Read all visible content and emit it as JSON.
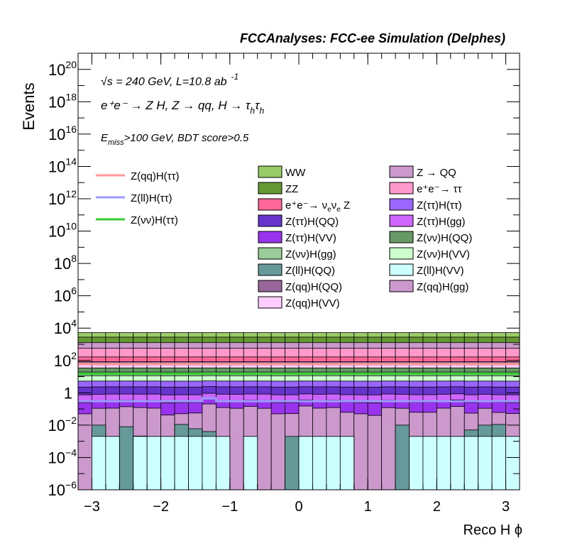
{
  "header": {
    "title": "FCCAnalyses: FCC-ee Simulation (Delphes)"
  },
  "annotations": {
    "energy": "√s = 240 GeV, L=10.8 ab",
    "lumi_exp": "-1",
    "process": "e⁺e⁻ → Z H, Z → qq, H → τ",
    "process_sub": "h",
    "cut_pre": "E",
    "cut_sub": "miss",
    "cut_post": ">100 GeV, BDT score>0.5"
  },
  "chart_data": {
    "type": "histogram-stack",
    "xlabel": "Reco H ϕ",
    "ylabel": "Events",
    "xlim": [
      -3.2,
      3.2
    ],
    "ylim": [
      1e-06,
      1e+21
    ],
    "yscale": "log",
    "x_ticks": [
      -3,
      -2,
      -1,
      0,
      1,
      2,
      3
    ],
    "x_tick_labels": [
      "−3",
      "−2",
      "−1",
      "0",
      "1",
      "2",
      "3"
    ],
    "y_ticks": [
      {
        "base": "10",
        "exp": "−6",
        "value": 1e-06
      },
      {
        "base": "10",
        "exp": "−4",
        "value": 0.0001
      },
      {
        "base": "10",
        "exp": "−2",
        "value": 0.01
      },
      {
        "base": "1",
        "exp": "",
        "value": 1
      },
      {
        "base": "10",
        "exp": "2",
        "value": 100.0
      },
      {
        "base": "10",
        "exp": "4",
        "value": 10000.0
      },
      {
        "base": "10",
        "exp": "6",
        "value": 1000000.0
      },
      {
        "base": "10",
        "exp": "8",
        "value": 100000000.0
      },
      {
        "base": "10",
        "exp": "10",
        "value": 10000000000.0
      },
      {
        "base": "10",
        "exp": "12",
        "value": 1000000000000.0
      },
      {
        "base": "10",
        "exp": "14",
        "value": 100000000000000.0
      },
      {
        "base": "10",
        "exp": "16",
        "value": 1e+16
      },
      {
        "base": "10",
        "exp": "18",
        "value": 1e+18
      },
      {
        "base": "10",
        "exp": "20",
        "value": 1e+20
      }
    ],
    "bins": 32,
    "stack_bottom_to_top": [
      {
        "name": "Z(ll)H(VV)",
        "color": "#ccffff",
        "values": [
          1e-06,
          0.002,
          0.002,
          1e-06,
          0.002,
          0.002,
          0.002,
          0.002,
          0.002,
          0.002,
          0.002,
          1e-06,
          0.002,
          1e-06,
          1e-06,
          1e-06,
          0.002,
          0.002,
          0.002,
          0.002,
          1e-06,
          1e-06,
          1e-06,
          1e-06,
          0.002,
          0.002,
          0.002,
          0.002,
          0.002,
          0.002,
          0.002,
          0.002
        ]
      },
      {
        "name": "Z(ll)H(QQ)",
        "color": "#669999",
        "values": [
          0,
          0.008,
          0,
          0.008,
          0.0001,
          0,
          0,
          0.009,
          0.004,
          0.002,
          0,
          0,
          0,
          0,
          0,
          0.002,
          0,
          0,
          0,
          0,
          0,
          0,
          0,
          0.01,
          0,
          0,
          0,
          0,
          0.003,
          0.008,
          0.009,
          0
        ]
      },
      {
        "name": "Z(qq)H(gg)",
        "color": "#cc99cc",
        "values": [
          0.05,
          0.1,
          0.11,
          0.13,
          0.12,
          0.11,
          0.04,
          0.04,
          0.05,
          0.2,
          0.12,
          0.11,
          0.14,
          0.11,
          0.05,
          0.05,
          0.15,
          0.11,
          0.12,
          0.06,
          0.05,
          0.04,
          0.12,
          0.1,
          0.06,
          0.06,
          0.11,
          0.14,
          0.05,
          0.1,
          0.05,
          0.05
        ]
      },
      {
        "name": "Z(ττ)H(VV)",
        "color": "#9933ee",
        "values": [
          0.2,
          0.2,
          0.22,
          0.2,
          0.2,
          0.22,
          0.2,
          0.2,
          0.2,
          0.22,
          0.2,
          0.2,
          0.2,
          0.22,
          0.2,
          0.2,
          0.2,
          0.2,
          0.22,
          0.2,
          0.2,
          0.2,
          0.22,
          0.2,
          0.2,
          0.2,
          0.2,
          0.22,
          0.2,
          0.2,
          0.2,
          0.2
        ]
      },
      {
        "name": "Z(ττ)H(gg)",
        "color": "#cc66ff",
        "values": [
          0.5,
          0.5,
          0.5,
          0.5,
          0.5,
          0.5,
          0.5,
          0.5,
          0.5,
          0.5,
          0.5,
          0.5,
          0.5,
          0.5,
          0.5,
          0.5,
          0.5,
          0.5,
          0.5,
          0.5,
          0.5,
          0.5,
          0.5,
          0.5,
          0.5,
          0.5,
          0.5,
          0.5,
          0.5,
          0.5,
          0.5,
          0.5
        ]
      },
      {
        "name": "Z(ττ)H(QQ)",
        "color": "#6633cc",
        "values": [
          1.5,
          1.5,
          1.5,
          1.5,
          1.5,
          1.5,
          1.5,
          1.5,
          1.5,
          1.5,
          1.5,
          1.5,
          1.5,
          1.5,
          1.5,
          1.5,
          1.5,
          1.5,
          1.5,
          1.5,
          1.5,
          1.5,
          1.5,
          1.5,
          1.5,
          1.5,
          1.5,
          1.5,
          1.5,
          1.5,
          1.5,
          1.5
        ]
      },
      {
        "name": "Z(ττ)H(ττ)",
        "color": "#9966ff",
        "values": [
          3,
          3,
          3,
          3,
          3,
          3,
          3,
          3,
          3,
          3,
          3,
          3,
          3,
          3,
          3,
          3,
          3,
          3,
          3,
          3,
          3,
          3,
          3,
          3,
          3,
          3,
          3,
          3,
          3,
          3,
          3,
          3
        ]
      },
      {
        "name": "Z(νν)H(VV)",
        "color": "#ccffcc",
        "values": [
          6,
          6,
          6,
          6,
          6,
          6,
          6,
          6,
          6,
          6,
          6,
          6,
          6,
          6,
          6,
          6,
          6,
          6,
          6,
          6,
          6,
          6,
          6,
          6,
          6,
          6,
          6,
          6,
          6,
          6,
          6,
          6
        ]
      },
      {
        "name": "Z(νν)H(gg)",
        "color": "#99cc99",
        "values": [
          8,
          8,
          8,
          8,
          8,
          8,
          8,
          8,
          8,
          8,
          8,
          8,
          8,
          8,
          8,
          8,
          8,
          8,
          8,
          8,
          8,
          8,
          8,
          8,
          8,
          8,
          8,
          8,
          8,
          8,
          8,
          8
        ]
      },
      {
        "name": "Z(νν)H(QQ)",
        "color": "#669966",
        "values": [
          15,
          15,
          15,
          15,
          15,
          15,
          15,
          15,
          15,
          15,
          15,
          15,
          15,
          15,
          15,
          15,
          15,
          15,
          15,
          15,
          15,
          15,
          15,
          15,
          15,
          15,
          15,
          15,
          15,
          15,
          15,
          15
        ]
      },
      {
        "name": "Z(qq)H(VV)",
        "color": "#ffccff",
        "values": [
          20,
          20,
          20,
          20,
          20,
          20,
          20,
          20,
          20,
          20,
          20,
          20,
          20,
          20,
          20,
          20,
          20,
          20,
          20,
          20,
          20,
          20,
          20,
          20,
          20,
          20,
          20,
          20,
          20,
          20,
          20,
          20
        ]
      },
      {
        "name": "Z(qq)H(QQ)",
        "color": "#996699",
        "values": [
          30,
          30,
          30,
          30,
          30,
          30,
          30,
          30,
          30,
          30,
          30,
          30,
          30,
          30,
          30,
          30,
          30,
          30,
          30,
          30,
          30,
          30,
          30,
          30,
          30,
          30,
          30,
          30,
          30,
          30,
          30,
          30
        ]
      },
      {
        "name": "e⁺e⁻→ ν",
        "color": "#ff6699",
        "values": [
          80,
          80,
          80,
          80,
          80,
          80,
          80,
          80,
          80,
          80,
          80,
          80,
          80,
          80,
          80,
          80,
          80,
          80,
          80,
          80,
          80,
          80,
          80,
          80,
          80,
          80,
          80,
          80,
          80,
          80,
          80,
          80
        ]
      },
      {
        "name": "e⁺e⁻→ ττ",
        "color": "#ff99cc",
        "values": [
          400,
          400,
          400,
          400,
          400,
          400,
          400,
          400,
          400,
          400,
          400,
          400,
          400,
          400,
          400,
          400,
          400,
          400,
          400,
          400,
          400,
          400,
          400,
          400,
          400,
          400,
          400,
          400,
          400,
          400,
          400,
          400
        ]
      },
      {
        "name": "Z → QQ",
        "color": "#cc99cc",
        "values": [
          700,
          700,
          700,
          700,
          700,
          700,
          700,
          700,
          700,
          700,
          700,
          700,
          700,
          700,
          700,
          700,
          700,
          700,
          700,
          700,
          700,
          700,
          700,
          700,
          700,
          700,
          700,
          700,
          700,
          700,
          700,
          700
        ]
      },
      {
        "name": "ZZ",
        "color": "#669933",
        "values": [
          1500,
          1500,
          1500,
          1500,
          1500,
          1500,
          1500,
          1500,
          1500,
          1500,
          1500,
          1500,
          1500,
          1500,
          1500,
          1500,
          1500,
          1500,
          1500,
          1500,
          1500,
          1500,
          1500,
          1500,
          1500,
          1500,
          1500,
          1500,
          1500,
          1500,
          1500,
          1500
        ]
      },
      {
        "name": "WW",
        "color": "#99cc66",
        "values": [
          2500,
          2500,
          2500,
          2500,
          2500,
          2500,
          2500,
          2500,
          2500,
          2500,
          2500,
          2500,
          2500,
          2500,
          2500,
          2500,
          2500,
          2500,
          2500,
          2500,
          2500,
          2500,
          2500,
          2500,
          2500,
          2500,
          2500,
          2500,
          2500,
          2500,
          2500,
          2500
        ]
      }
    ],
    "signals": [
      {
        "name": "Z(qq)H(ττ)",
        "color": "#ff9999",
        "values": [
          60,
          60,
          60,
          60,
          60,
          60,
          60,
          60,
          60,
          60,
          60,
          60,
          60,
          60,
          60,
          60,
          60,
          60,
          60,
          60,
          60,
          60,
          60,
          60,
          60,
          60,
          60,
          60,
          60,
          60,
          60,
          60
        ]
      },
      {
        "name": "Z(ll)H(ττ)",
        "color": "#9999ff",
        "values": [
          0.3,
          0.3,
          0.3,
          0.3,
          0.3,
          0.3,
          0.3,
          0.3,
          0.3,
          0.45,
          0.3,
          0.3,
          0.3,
          0.3,
          0.3,
          0.3,
          0.3,
          0.3,
          0.3,
          0.3,
          0.3,
          0.3,
          0.3,
          0.3,
          0.3,
          0.3,
          0.3,
          0.3,
          0.3,
          0.3,
          0.3,
          0.3
        ]
      },
      {
        "name": "Z(νν)H(ττ)",
        "color": "#33cc33",
        "values": [
          15,
          15,
          15,
          15,
          15,
          15,
          15,
          15,
          15,
          15,
          15,
          15,
          15,
          15,
          15,
          15,
          15,
          15,
          15,
          15,
          15,
          15,
          15,
          15,
          15,
          15,
          15,
          15,
          15,
          15,
          15,
          15
        ]
      }
    ],
    "legend_left": [
      "Z(qq)H(ττ)",
      "Z(ll)H(ττ)",
      "Z(νν)H(ττ)"
    ],
    "legend_mid": [
      {
        "label": "WW",
        "color": "#99cc66"
      },
      {
        "label": "ZZ",
        "color": "#669933"
      },
      {
        "label": "e⁺e⁻→ ν",
        "sub": "e",
        "mid": "ν",
        "sub2": "e",
        "tail": " Z",
        "color": "#ff6699"
      },
      {
        "label": "Z(ττ)H(QQ)",
        "color": "#6633cc"
      },
      {
        "label": "Z(ττ)H(VV)",
        "color": "#9933ee"
      },
      {
        "label": "Z(νν)H(gg)",
        "color": "#99cc99"
      },
      {
        "label": "Z(ll)H(QQ)",
        "color": "#669999"
      },
      {
        "label": "Z(qq)H(QQ)",
        "color": "#996699"
      },
      {
        "label": "Z(qq)H(VV)",
        "color": "#ffccff"
      }
    ],
    "legend_right": [
      {
        "label": "Z → QQ",
        "color": "#cc99cc"
      },
      {
        "label": "e⁺e⁻→ ττ",
        "color": "#ff99cc"
      },
      {
        "label": "Z(ττ)H(ττ)",
        "color": "#9966ff"
      },
      {
        "label": "Z(ττ)H(gg)",
        "color": "#cc66ff"
      },
      {
        "label": "Z(νν)H(QQ)",
        "color": "#669966"
      },
      {
        "label": "Z(νν)H(VV)",
        "color": "#ccffcc"
      },
      {
        "label": "Z(ll)H(VV)",
        "color": "#ccffff"
      },
      {
        "label": "Z(qq)H(gg)",
        "color": "#cc99cc"
      }
    ]
  }
}
